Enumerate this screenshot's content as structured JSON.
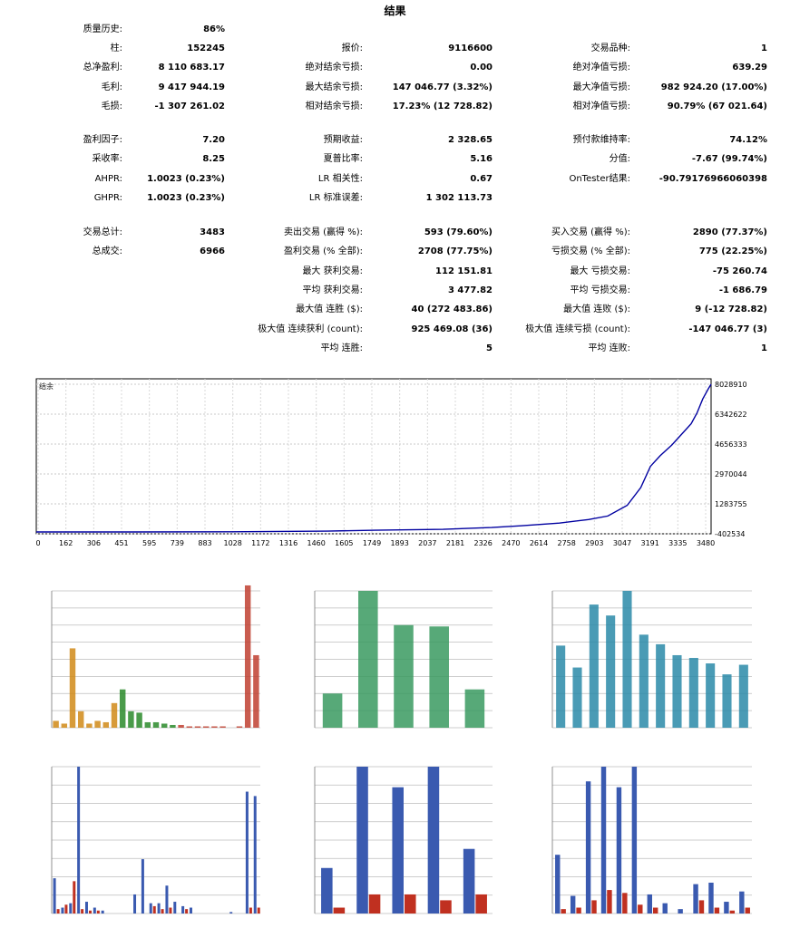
{
  "title": "结果",
  "stats": [
    {
      "label": "质量历史:",
      "value": "86%"
    },
    {
      "label": "柱:",
      "value": "152245"
    },
    {
      "label": "报价:",
      "value": "9116600"
    },
    {
      "label": "交易品种:",
      "value": "1"
    },
    {
      "label": "总净盈利:",
      "value": "8 110 683.17"
    },
    {
      "label": "绝对结余亏损:",
      "value": "0.00"
    },
    {
      "label": "绝对净值亏损:",
      "value": "639.29"
    },
    {
      "label": "毛利:",
      "value": "9 417 944.19"
    },
    {
      "label": "最大结余亏损:",
      "value": "147 046.77 (3.32%)"
    },
    {
      "label": "最大净值亏损:",
      "value": "982 924.20 (17.00%)"
    },
    {
      "label": "毛损:",
      "value": "-1 307 261.02"
    },
    {
      "label": "相对结余亏损:",
      "value": "17.23% (12 728.82)"
    },
    {
      "label": "相对净值亏损:",
      "value": "90.79% (67 021.64)"
    },
    {
      "label": "盈利因子:",
      "value": "7.20"
    },
    {
      "label": "预期收益:",
      "value": "2 328.65"
    },
    {
      "label": "预付款维持率:",
      "value": "74.12%"
    },
    {
      "label": "采收率:",
      "value": "8.25"
    },
    {
      "label": "夏普比率:",
      "value": "5.16"
    },
    {
      "label": "分值:",
      "value": "-7.67 (99.74%)"
    },
    {
      "label": "AHPR:",
      "value": "1.0023 (0.23%)"
    },
    {
      "label": "LR 相关性:",
      "value": "0.67"
    },
    {
      "label": "OnTester结果:",
      "value": "-90.79176966060398"
    },
    {
      "label": "GHPR:",
      "value": "1.0023 (0.23%)"
    },
    {
      "label": "LR 标准误差:",
      "value": "1 302 113.73"
    },
    {
      "label": "交易总计:",
      "value": "3483"
    },
    {
      "label": "卖出交易 (赢得 %):",
      "value": "593 (79.60%)"
    },
    {
      "label": "买入交易 (赢得 %):",
      "value": "2890 (77.37%)"
    },
    {
      "label": "总成交:",
      "value": "6966"
    },
    {
      "label": "盈利交易 (% 全部):",
      "value": "2708 (77.75%)"
    },
    {
      "label": "亏损交易 (% 全部):",
      "value": "775 (22.25%)"
    },
    {
      "label": "最大 获利交易:",
      "value": "112 151.81"
    },
    {
      "label": "最大 亏损交易:",
      "value": "-75 260.74"
    },
    {
      "label": "平均 获利交易:",
      "value": "3 477.82"
    },
    {
      "label": "平均 亏损交易:",
      "value": "-1 686.79"
    },
    {
      "label": "最大值 连胜 ($):",
      "value": "40 (272 483.86)"
    },
    {
      "label": "最大值 连败 ($):",
      "value": "9 (-12 728.82)"
    },
    {
      "label": "极大值 连续获利 (count):",
      "value": "925 469.08 (36)"
    },
    {
      "label": "极大值 连续亏损 (count):",
      "value": "-147 046.77 (3)"
    },
    {
      "label": "平均 连胜:",
      "value": "5"
    },
    {
      "label": "平均 连败:",
      "value": "1"
    }
  ],
  "chart_data": [
    {
      "type": "line",
      "title": "结余",
      "x_ticks": [
        "0",
        "162",
        "306",
        "451",
        "595",
        "739",
        "883",
        "1028",
        "1172",
        "1316",
        "1460",
        "1605",
        "1749",
        "1893",
        "2037",
        "2181",
        "2326",
        "2470",
        "2614",
        "2758",
        "2903",
        "3047",
        "3191",
        "3335",
        "3480"
      ],
      "y_ticks": [
        "8028910",
        "6342622",
        "4656333",
        "2970044",
        "1283755",
        "-402534"
      ],
      "xlim": [
        0,
        3483
      ],
      "ylim": [
        -402534,
        8028910
      ],
      "grid": true,
      "series": [
        {
          "color": "#0000a0",
          "x": [
            0,
            500,
            1000,
            1500,
            1750,
            2100,
            2350,
            2500,
            2700,
            2850,
            2950,
            3050,
            3120,
            3170,
            3220,
            3280,
            3330,
            3380,
            3410,
            3440,
            3470,
            3483
          ],
          "y": [
            -300000,
            -300000,
            -290000,
            -250000,
            -200000,
            -150000,
            -50000,
            50000,
            200000,
            400000,
            600000,
            1200000,
            2200000,
            3400000,
            4000000,
            4600000,
            5200000,
            5800000,
            6400000,
            7200000,
            7800000,
            8028910
          ]
        }
      ]
    },
    {
      "type": "bar",
      "bar_colors": [
        "#d08a18",
        "#d08a18",
        "#d08a18",
        "#d08a18",
        "#d08a18",
        "#d08a18",
        "#d08a18",
        "#d08a18",
        "#2a8a2a",
        "#2a8a2a",
        "#2a8a2a",
        "#2a8a2a",
        "#2a8a2a",
        "#2a8a2a",
        "#2a8a2a",
        "#c04030",
        "#c04030",
        "#c04030",
        "#c04030",
        "#c04030",
        "#c04030",
        "#c04030",
        "#c04030",
        "#c04030",
        "#c04030"
      ],
      "values": [
        5,
        3,
        58,
        12,
        3,
        5,
        4,
        18,
        28,
        12,
        11,
        4,
        4,
        3,
        2,
        2,
        1,
        1,
        1,
        1,
        1,
        0,
        1,
        104,
        53
      ]
    },
    {
      "type": "bar",
      "bar_colors": [
        "#3a9a60"
      ],
      "values": [
        25,
        100,
        75,
        74,
        28
      ]
    },
    {
      "type": "bar",
      "bar_colors": [
        "#2a8aa8"
      ],
      "values": [
        60,
        44,
        90,
        82,
        100,
        68,
        61,
        53,
        51,
        47,
        39,
        46
      ]
    },
    {
      "type": "bar",
      "series": [
        {
          "color": "#3a5ab0",
          "values": [
            24,
            4,
            7,
            100,
            8,
            4,
            2,
            0,
            0,
            0,
            13,
            37,
            7,
            7,
            19,
            8,
            5,
            4,
            0,
            0,
            0,
            0,
            1,
            0,
            83,
            80
          ]
        },
        {
          "color": "#c03020",
          "values": [
            3,
            6,
            22,
            3,
            2,
            2,
            0,
            0,
            0,
            0,
            0,
            0,
            5,
            3,
            4,
            0,
            3,
            0,
            0,
            0,
            0,
            0,
            0,
            0,
            4,
            4
          ]
        }
      ]
    },
    {
      "type": "bar",
      "series": [
        {
          "color": "#3a5ab0",
          "values": [
            31,
            100,
            86,
            100,
            44
          ]
        },
        {
          "color": "#c03020",
          "values": [
            4,
            13,
            13,
            9,
            13
          ]
        }
      ]
    },
    {
      "type": "bar",
      "series": [
        {
          "color": "#3a5ab0",
          "values": [
            40,
            12,
            90,
            100,
            86,
            100,
            13,
            7,
            3,
            20,
            21,
            8,
            15
          ]
        },
        {
          "color": "#c03020",
          "values": [
            3,
            4,
            9,
            16,
            14,
            6,
            4,
            0,
            0,
            9,
            4,
            2,
            4
          ]
        }
      ]
    }
  ]
}
